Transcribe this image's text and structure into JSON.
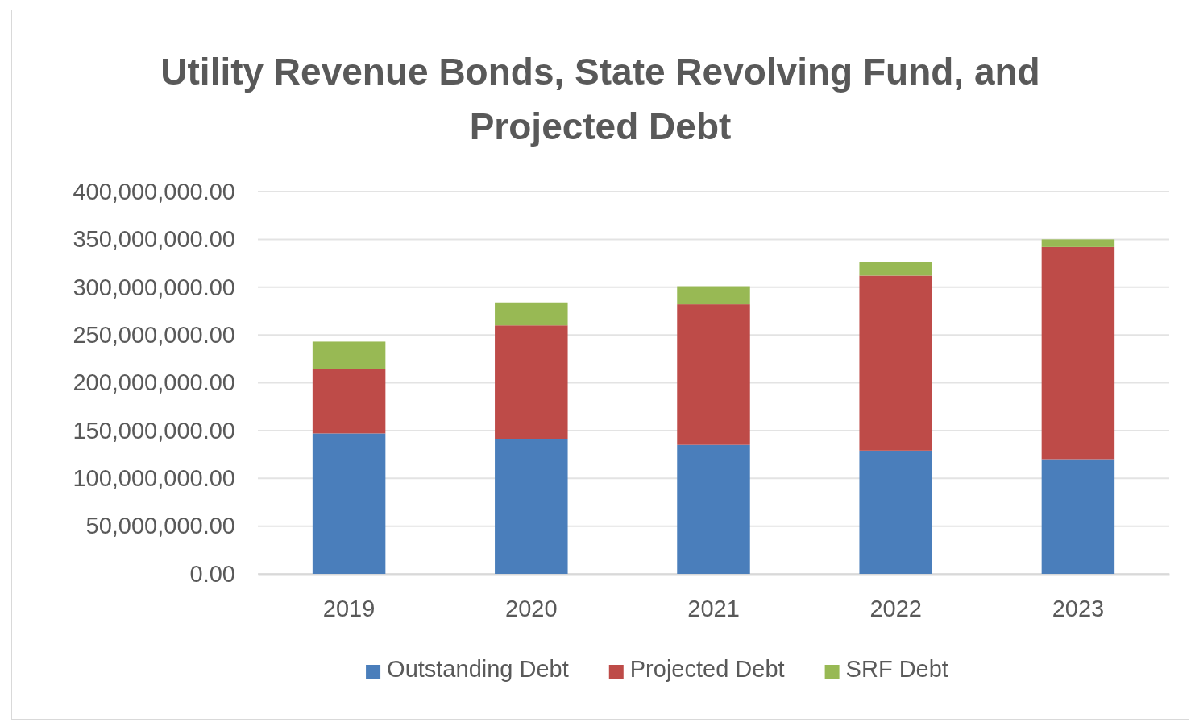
{
  "chart_data": {
    "type": "bar",
    "title": "Utility Revenue Bonds, State Revolving Fund, and Projected Debt",
    "categories": [
      "2019",
      "2020",
      "2021",
      "2022",
      "2023"
    ],
    "stacked": true,
    "series": [
      {
        "name": "Outstanding Debt",
        "color": "#4a7ebb",
        "values": [
          147000000,
          141000000,
          135000000,
          129000000,
          120000000
        ]
      },
      {
        "name": "Projected Debt",
        "color": "#be4b48",
        "values": [
          67000000,
          119000000,
          147000000,
          183000000,
          222000000
        ]
      },
      {
        "name": "SRF Debt",
        "color": "#98b954",
        "values": [
          29000000,
          24000000,
          19000000,
          14000000,
          8000000
        ]
      }
    ],
    "ylim": [
      0,
      400000000
    ],
    "yticks": [
      {
        "value": 0,
        "label": "0.00"
      },
      {
        "value": 50000000,
        "label": "50,000,000.00"
      },
      {
        "value": 100000000,
        "label": "100,000,000.00"
      },
      {
        "value": 150000000,
        "label": "150,000,000.00"
      },
      {
        "value": 200000000,
        "label": "200,000,000.00"
      },
      {
        "value": 250000000,
        "label": "250,000,000.00"
      },
      {
        "value": 300000000,
        "label": "300,000,000.00"
      },
      {
        "value": 350000000,
        "label": "350,000,000.00"
      },
      {
        "value": 400000000,
        "label": "400,000,000.00"
      }
    ],
    "grid": "y",
    "legend": "bottom"
  }
}
